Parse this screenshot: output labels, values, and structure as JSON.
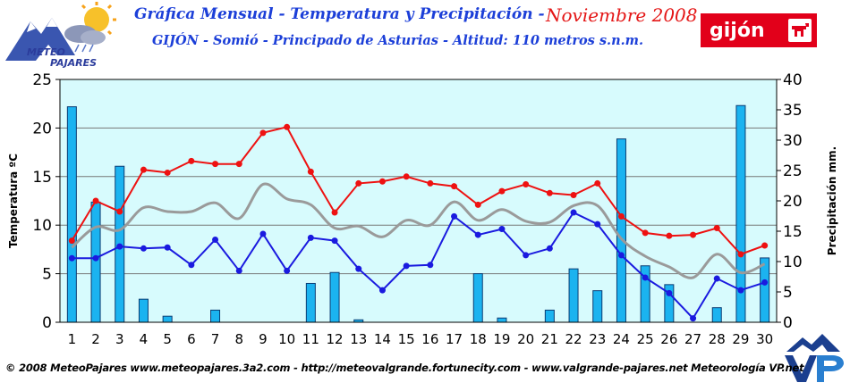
{
  "header": {
    "title": "Gráfica Mensual - Temperatura y Precipitación -",
    "month": "Noviembre 2008",
    "subtitle": "GIJÓN - Somió - Principado de Asturias - Altitud: 110 metros s.n.m.",
    "logo_left_line1": "METEO",
    "logo_left_line2": "PAJARES",
    "logo_right": "gijón"
  },
  "footer": {
    "text": "© 2008 MeteoPajares www.meteopajares.3a2.com - http://meteovalgrande.fortunecity.com - www.valgrande-pajares.net Meteorología VP.net"
  },
  "chart_data": {
    "type": "bar",
    "ylabel": "Temperatura ºC",
    "y2label": "Precipitación mm.",
    "ylim": [
      0,
      25
    ],
    "y2lim": [
      0,
      40
    ],
    "yticks": [
      0,
      5,
      10,
      15,
      20,
      25
    ],
    "y2ticks": [
      0,
      5,
      10,
      15,
      20,
      25,
      30,
      35,
      40
    ],
    "grid": true,
    "categories": [
      "1",
      "2",
      "3",
      "4",
      "5",
      "6",
      "7",
      "8",
      "9",
      "10",
      "11",
      "12",
      "13",
      "14",
      "15",
      "16",
      "17",
      "18",
      "19",
      "20",
      "21",
      "22",
      "23",
      "24",
      "25",
      "26",
      "27",
      "28",
      "29",
      "30"
    ],
    "precipitation": [
      35.5,
      19.8,
      25.7,
      3.8,
      1.0,
      0,
      2.0,
      0,
      0,
      0,
      6.4,
      8.2,
      0.4,
      0,
      0,
      0,
      0,
      8.0,
      0.7,
      0,
      2.0,
      8.8,
      5.2,
      30.2,
      9.3,
      6.2,
      0,
      2.4,
      35.7,
      10.6
    ],
    "temp_max": [
      8.4,
      12.5,
      11.4,
      15.7,
      15.4,
      16.6,
      16.3,
      16.3,
      19.5,
      20.1,
      15.5,
      11.3,
      14.3,
      14.5,
      15.0,
      14.3,
      14.0,
      12.1,
      13.5,
      14.2,
      13.3,
      13.1,
      14.3,
      10.9,
      9.2,
      8.9,
      9.0,
      9.7,
      7.0,
      7.9
    ],
    "temp_avg": [
      7.7,
      9.8,
      9.5,
      11.8,
      11.4,
      11.4,
      12.3,
      10.7,
      14.2,
      12.7,
      12.1,
      9.7,
      9.9,
      8.8,
      10.5,
      10.0,
      12.4,
      10.5,
      11.6,
      10.4,
      10.3,
      12.0,
      12.0,
      8.6,
      6.8,
      5.7,
      4.6,
      7.0,
      5.1,
      6.0
    ],
    "temp_min": [
      6.6,
      6.6,
      7.8,
      7.6,
      7.7,
      5.9,
      8.5,
      5.3,
      9.1,
      5.3,
      8.7,
      8.4,
      5.5,
      3.3,
      5.8,
      5.9,
      10.9,
      9.0,
      9.6,
      6.9,
      7.6,
      11.3,
      10.1,
      6.9,
      4.6,
      3.0,
      0.4,
      4.5,
      3.3,
      4.1
    ],
    "colors": {
      "plot_bg": "#d7fbfd",
      "bars": "#1bb3f0",
      "max": "#ee1111",
      "avg": "#9a9a9a",
      "min": "#1a1adf"
    }
  }
}
